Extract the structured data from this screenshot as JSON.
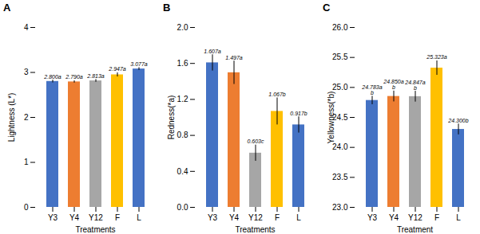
{
  "chart_data": [
    {
      "type": "bar",
      "title": "A",
      "ylabel": "Lightness (L*)",
      "xlabel": "Treatments",
      "categories": [
        "Y3",
        "Y4",
        "Y12",
        "F",
        "L"
      ],
      "values": [
        2.8,
        2.79,
        2.813,
        2.947,
        3.077
      ],
      "errors": [
        0.03,
        0.025,
        0.03,
        0.045,
        0.03
      ],
      "colors": [
        "#4472C4",
        "#ED7D31",
        "#A6A6A6",
        "#FFC000",
        "#4472C4"
      ],
      "ylim": [
        0.0,
        4.0
      ],
      "yticks": [
        0,
        1,
        2,
        3,
        4
      ],
      "data_labels": true,
      "value_labels": [
        "2.800a",
        "2.790a",
        "2.813a",
        "2.947a",
        "3.077a"
      ]
    },
    {
      "type": "bar",
      "title": "B",
      "ylabel": "Redness(*a)",
      "xlabel": "Treatments",
      "categories": [
        "Y3",
        "Y4",
        "Y12",
        "F",
        "L"
      ],
      "values": [
        1.607,
        1.497,
        0.603,
        1.067,
        0.917
      ],
      "errors": [
        0.09,
        0.13,
        0.09,
        0.15,
        0.09
      ],
      "colors": [
        "#4472C4",
        "#ED7D31",
        "#A6A6A6",
        "#FFC000",
        "#4472C4"
      ],
      "ylim": [
        0.0,
        2.0
      ],
      "yticks": [
        {
          "value": 0.0,
          "label": "0.0"
        },
        0.4,
        0.8,
        1.2,
        1.6,
        {
          "value": 2.0,
          "label": "2.0"
        }
      ],
      "data_labels": true,
      "value_labels": [
        "1.607a",
        "1.497a",
        "0.603c",
        "1.067b",
        "0.917b"
      ]
    },
    {
      "type": "bar",
      "title": "C",
      "ylabel": "Yellowness(*b)",
      "xlabel": "Treatment",
      "categories": [
        "Y3",
        "Y4",
        "Y12",
        "F",
        "L"
      ],
      "values": [
        24.783,
        24.85,
        24.847,
        25.323,
        24.3
      ],
      "errors": [
        0.07,
        0.09,
        0.09,
        0.12,
        0.09
      ],
      "colors": [
        "#4472C4",
        "#ED7D31",
        "#A6A6A6",
        "#FFC000",
        "#4472C4"
      ],
      "ylim": [
        23.0,
        26.0
      ],
      "yticks": [
        {
          "value": 23.0,
          "label": "23.0"
        },
        23.5,
        {
          "value": 24.0,
          "label": "24.0"
        },
        24.5,
        {
          "value": 25.0,
          "label": "25.0"
        },
        25.5,
        {
          "value": 26.0,
          "label": "26.0"
        }
      ],
      "data_labels": true,
      "value_labels": [
        "24.783a\nb",
        "24.850a\nb",
        "24.847a\nb",
        "25.323a",
        "24.300b"
      ]
    }
  ]
}
